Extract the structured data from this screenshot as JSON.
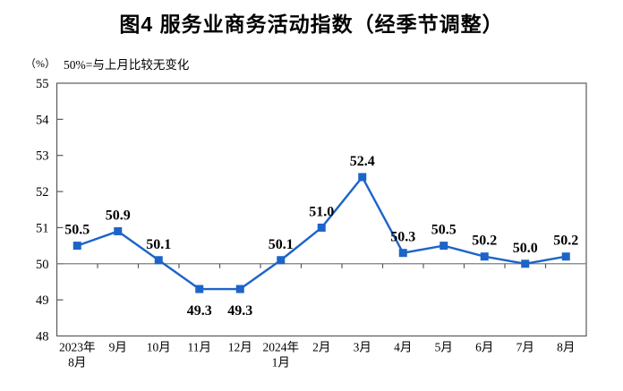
{
  "page": {
    "title": "图4 服务业商务活动指数（经季节调整）",
    "unit_label": "（%）",
    "note": "50%=与上月比较无变化"
  },
  "chart_data": {
    "type": "line",
    "title": "图4 服务业商务活动指数（经季节调整）",
    "unit": "%",
    "note": "50%=与上月比较无变化",
    "categories": [
      "2023年\n8月",
      "9月",
      "10月",
      "11月",
      "12月",
      "2024年\n1月",
      "2月",
      "3月",
      "4月",
      "5月",
      "6月",
      "7月",
      "8月"
    ],
    "values": [
      50.5,
      50.9,
      50.1,
      49.3,
      49.3,
      50.1,
      51.0,
      52.4,
      50.3,
      50.5,
      50.2,
      50.0,
      50.2
    ],
    "labels": [
      "50.5",
      "50.9",
      "50.1",
      "49.3",
      "49.3",
      "50.1",
      "51.0",
      "52.4",
      "50.3",
      "50.5",
      "50.2",
      "50.0",
      "50.2"
    ],
    "label_positions": [
      "above",
      "above",
      "above",
      "below",
      "below",
      "above",
      "above",
      "above",
      "above",
      "above",
      "above",
      "above",
      "above"
    ],
    "yticks": [
      48,
      49,
      50,
      51,
      52,
      53,
      54,
      55
    ],
    "ylim": [
      48,
      55
    ],
    "reference_line": 50,
    "grid": false,
    "legend": "none",
    "marker_shape": "square",
    "colors": {
      "line": "#1C64C8",
      "marker": "#1C64C8",
      "reference_line": "#7f7f7f",
      "axis": "#595959",
      "text": "#000000"
    }
  }
}
